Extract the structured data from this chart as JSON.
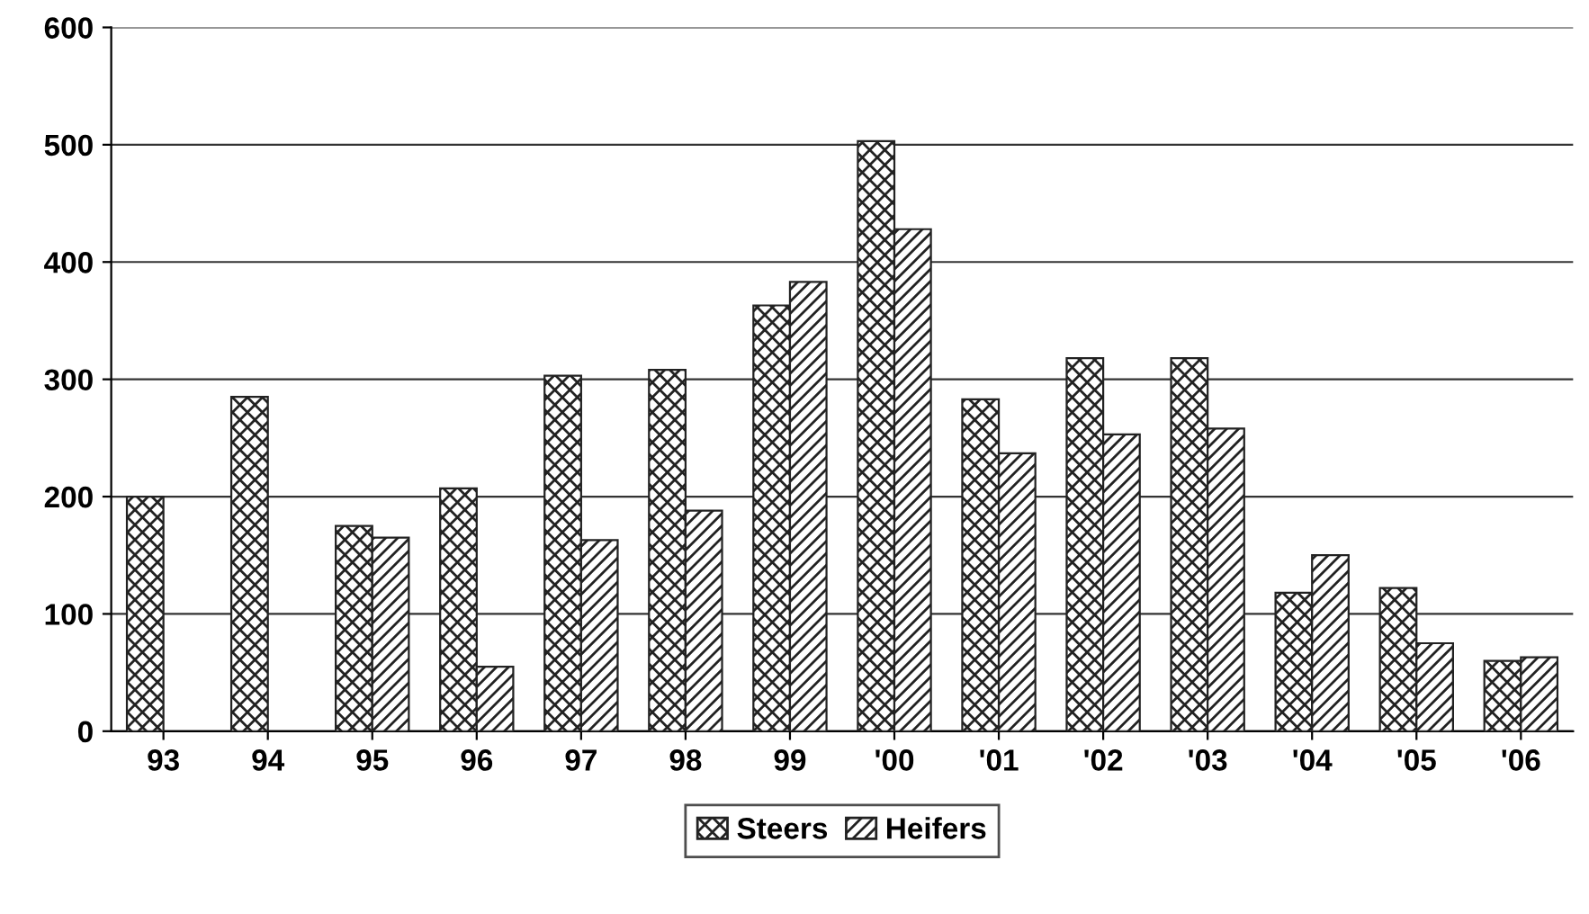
{
  "chart_data": {
    "type": "bar",
    "categories": [
      "93",
      "94",
      "95",
      "96",
      "97",
      "98",
      "99",
      "'00",
      "'01",
      "'02",
      "'03",
      "'04",
      "'05",
      "'06"
    ],
    "series": [
      {
        "name": "Steers",
        "color": "#222222",
        "values": [
          200,
          285,
          175,
          207,
          303,
          308,
          363,
          503,
          283,
          318,
          318,
          118,
          122,
          60
        ]
      },
      {
        "name": "Heifers",
        "color": "#222222",
        "values": [
          null,
          null,
          165,
          55,
          163,
          188,
          383,
          428,
          237,
          253,
          258,
          150,
          75,
          63
        ]
      }
    ],
    "ylim": [
      0,
      600
    ],
    "yticks": [
      0,
      100,
      200,
      300,
      400,
      500,
      600
    ],
    "grid": "y",
    "legend": "bottom"
  }
}
